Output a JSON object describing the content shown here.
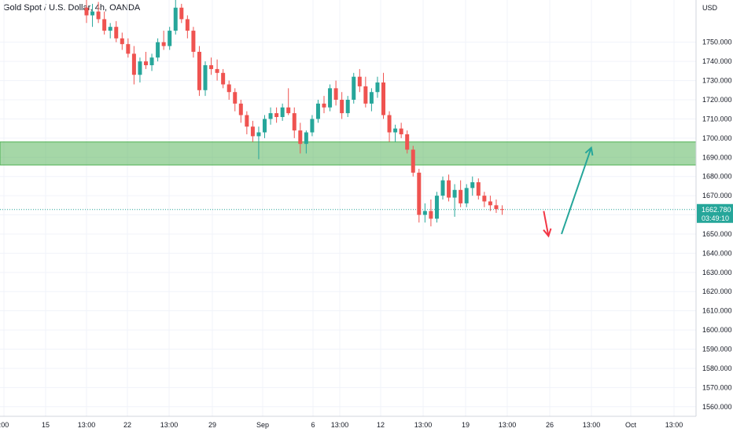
{
  "header": {
    "title": "Gold Spot / U.S. Dollar, 4h, OANDA"
  },
  "chart_data": {
    "type": "candlestick",
    "title": "Gold Spot / U.S. Dollar, 4h, OANDA",
    "currency_label": "USD",
    "ylim": [
      1555,
      1772
    ],
    "y_ticks": [
      1560,
      1570,
      1580,
      1590,
      1600,
      1610,
      1620,
      1630,
      1640,
      1650,
      1660,
      1670,
      1680,
      1690,
      1700,
      1710,
      1720,
      1730,
      1740,
      1750
    ],
    "y_tick_labels": [
      "1560.000",
      "1570.000",
      "1580.000",
      "1590.000",
      "1600.000",
      "1610.000",
      "1620.000",
      "1630.000",
      "1640.000",
      "1650.000",
      "1660.000",
      "1670.000",
      "1680.000",
      "1690.000",
      "1700.000",
      "1710.000",
      "1720.000",
      "1730.000",
      "1740.000",
      "1750.000"
    ],
    "x_ticks": [
      ":00",
      "15",
      "13:00",
      "22",
      "13:00",
      "29",
      "Sep",
      "6",
      "13:00",
      "12",
      "13:00",
      "19",
      "13:00",
      "26",
      "13:00",
      "Oct",
      "13:00"
    ],
    "current_price": "1662.780",
    "countdown": "03:49:10",
    "zone": {
      "low": 1686,
      "high": 1698,
      "color": "#4caf50"
    },
    "up_color": "#26a69a",
    "down_color": "#ef5350",
    "arrows": [
      {
        "color": "#f23645",
        "from_index": 77,
        "from_price": 1662,
        "to_index": 77.8,
        "to_price": 1649
      },
      {
        "color": "#26a69a",
        "from_index": 80,
        "from_price": 1650,
        "to_index": 85,
        "to_price": 1695
      }
    ],
    "candles": [
      [
        1768,
        1772,
        1760,
        1764
      ],
      [
        1764,
        1770,
        1758,
        1766
      ],
      [
        1766,
        1771,
        1760,
        1762
      ],
      [
        1762,
        1766,
        1754,
        1756
      ],
      [
        1756,
        1760,
        1752,
        1758
      ],
      [
        1758,
        1761,
        1750,
        1752
      ],
      [
        1752,
        1755,
        1746,
        1749
      ],
      [
        1749,
        1752,
        1742,
        1744
      ],
      [
        1744,
        1748,
        1728,
        1733
      ],
      [
        1733,
        1742,
        1729,
        1740
      ],
      [
        1740,
        1745,
        1736,
        1738
      ],
      [
        1738,
        1744,
        1735,
        1742
      ],
      [
        1742,
        1752,
        1740,
        1750
      ],
      [
        1750,
        1756,
        1746,
        1748
      ],
      [
        1748,
        1758,
        1746,
        1756
      ],
      [
        1756,
        1772,
        1754,
        1768
      ],
      [
        1768,
        1770,
        1760,
        1762
      ],
      [
        1762,
        1764,
        1752,
        1756
      ],
      [
        1756,
        1758,
        1742,
        1745
      ],
      [
        1745,
        1748,
        1722,
        1725
      ],
      [
        1725,
        1740,
        1722,
        1738
      ],
      [
        1738,
        1742,
        1733,
        1736
      ],
      [
        1736,
        1741,
        1730,
        1734
      ],
      [
        1734,
        1736,
        1726,
        1728
      ],
      [
        1728,
        1730,
        1720,
        1724
      ],
      [
        1724,
        1726,
        1714,
        1718
      ],
      [
        1718,
        1720,
        1708,
        1712
      ],
      [
        1712,
        1714,
        1702,
        1706
      ],
      [
        1706,
        1709,
        1698,
        1701
      ],
      [
        1701,
        1706,
        1689,
        1703
      ],
      [
        1703,
        1712,
        1700,
        1710
      ],
      [
        1710,
        1716,
        1707,
        1713
      ],
      [
        1713,
        1716,
        1708,
        1711
      ],
      [
        1711,
        1718,
        1709,
        1716
      ],
      [
        1716,
        1726,
        1712,
        1713
      ],
      [
        1713,
        1716,
        1700,
        1704
      ],
      [
        1704,
        1708,
        1692,
        1697
      ],
      [
        1697,
        1704,
        1692,
        1703
      ],
      [
        1703,
        1712,
        1701,
        1710
      ],
      [
        1710,
        1720,
        1708,
        1718
      ],
      [
        1718,
        1722,
        1713,
        1716
      ],
      [
        1716,
        1728,
        1714,
        1726
      ],
      [
        1726,
        1730,
        1717,
        1720
      ],
      [
        1720,
        1724,
        1710,
        1713
      ],
      [
        1713,
        1722,
        1711,
        1720
      ],
      [
        1720,
        1734,
        1718,
        1732
      ],
      [
        1732,
        1736,
        1724,
        1727
      ],
      [
        1727,
        1732,
        1716,
        1718
      ],
      [
        1718,
        1726,
        1714,
        1724
      ],
      [
        1724,
        1732,
        1721,
        1729
      ],
      [
        1729,
        1734,
        1710,
        1712
      ],
      [
        1712,
        1714,
        1698,
        1703
      ],
      [
        1703,
        1707,
        1698,
        1705
      ],
      [
        1705,
        1708,
        1700,
        1702
      ],
      [
        1702,
        1704,
        1692,
        1694
      ],
      [
        1694,
        1696,
        1680,
        1682
      ],
      [
        1682,
        1684,
        1656,
        1660
      ],
      [
        1660,
        1666,
        1656,
        1662
      ],
      [
        1662,
        1668,
        1654,
        1658
      ],
      [
        1658,
        1672,
        1656,
        1670
      ],
      [
        1670,
        1680,
        1668,
        1678
      ],
      [
        1678,
        1681,
        1667,
        1669
      ],
      [
        1669,
        1676,
        1659,
        1673
      ],
      [
        1673,
        1678,
        1664,
        1666
      ],
      [
        1666,
        1676,
        1664,
        1674
      ],
      [
        1674,
        1680,
        1670,
        1677
      ],
      [
        1677,
        1679,
        1668,
        1670
      ],
      [
        1670,
        1672,
        1664,
        1667
      ],
      [
        1667,
        1670,
        1662,
        1665
      ],
      [
        1665,
        1668,
        1661,
        1663
      ],
      [
        1663,
        1665,
        1660,
        1662.78
      ]
    ]
  }
}
